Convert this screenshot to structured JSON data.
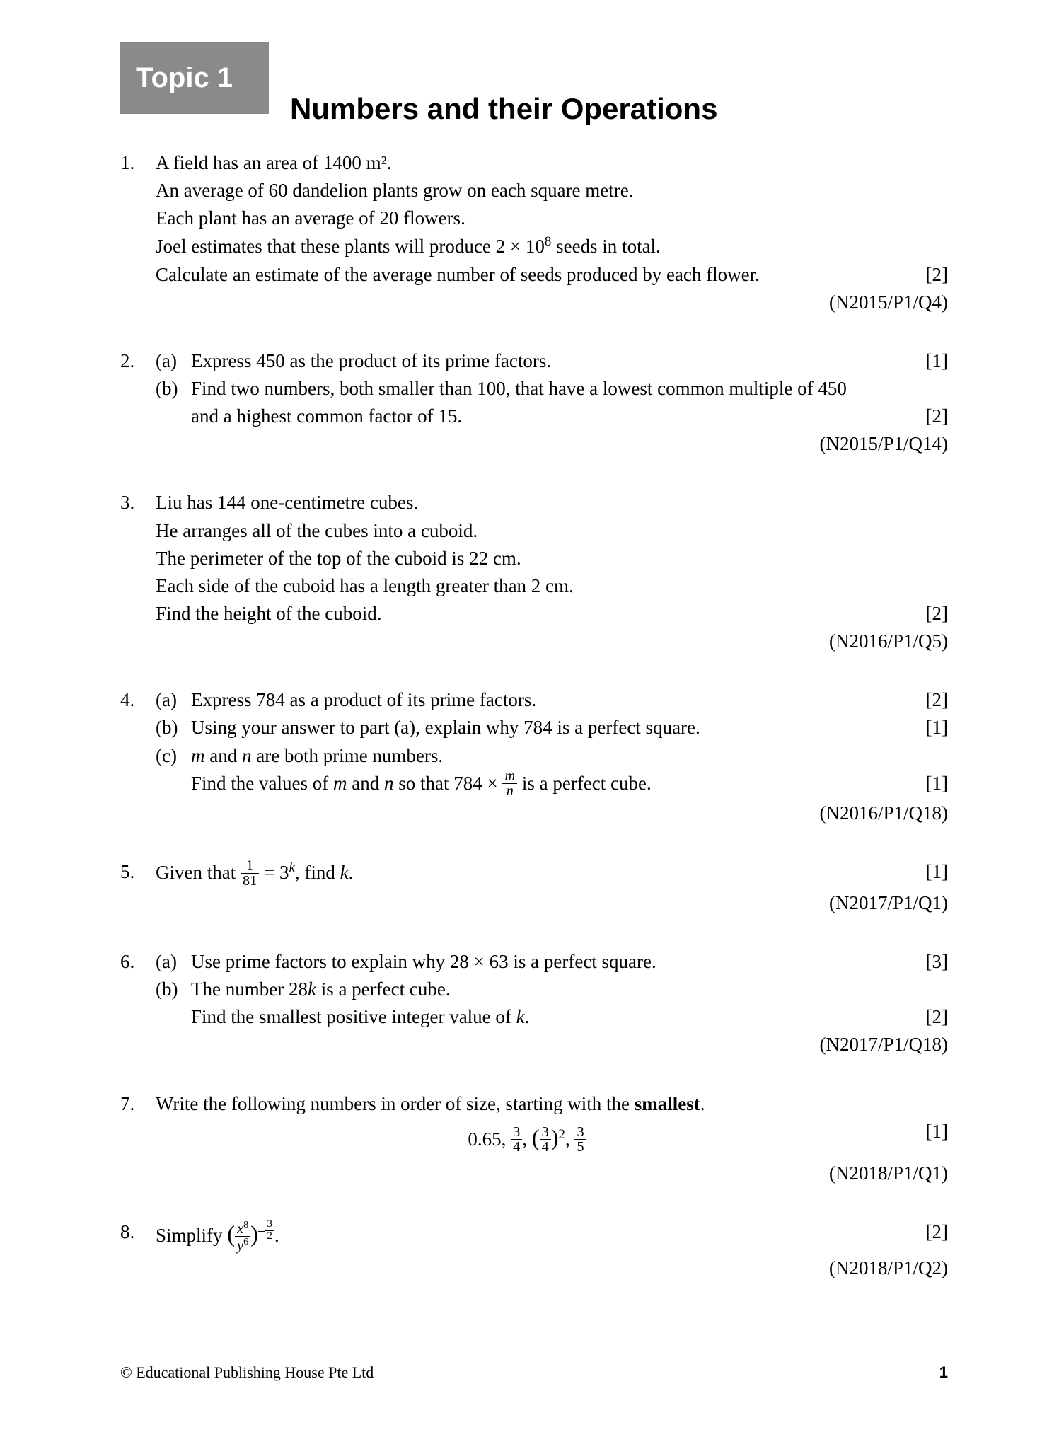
{
  "topic_badge": "Topic 1",
  "chapter_title": "Numbers and their Operations",
  "footer_copyright": "© Educational Publishing House Pte Ltd",
  "page_number": "1",
  "q1": {
    "num": "1.",
    "l1": "A field has an area of 1400 m².",
    "l2": "An average of 60 dandelion plants grow on each square metre.",
    "l3": "Each plant has an average of 20 flowers.",
    "l4a": "Joel estimates that these plants will produce 2 × 10",
    "l4b": " seeds in total.",
    "l5": "Calculate an estimate of the average number of seeds produced by each flower.",
    "marks": "[2]",
    "ref": "(N2015/P1/Q4)"
  },
  "q2": {
    "num": "2.",
    "a_label": "(a)",
    "a_text": "Express 450 as the product of its prime factors.",
    "a_marks": "[1]",
    "b_label": "(b)",
    "b_text1": "Find two numbers, both smaller than 100, that have a lowest common multiple of 450",
    "b_text2": "and a highest common factor of 15.",
    "b_marks": "[2]",
    "ref": "(N2015/P1/Q14)"
  },
  "q3": {
    "num": "3.",
    "l1": "Liu has 144 one-centimetre cubes.",
    "l2": "He arranges all of the cubes into a cuboid.",
    "l3": "The perimeter of the top of the cuboid is 22 cm.",
    "l4": "Each side of the cuboid has a length greater than 2 cm.",
    "l5": "Find the height of the cuboid.",
    "marks": "[2]",
    "ref": "(N2016/P1/Q5)"
  },
  "q4": {
    "num": "4.",
    "a_label": "(a)",
    "a_text": "Express 784 as a product of its prime factors.",
    "a_marks": "[2]",
    "b_label": "(b)",
    "b_text": "Using your answer to part (a), explain why 784 is a perfect square.",
    "b_marks": "[1]",
    "c_label": "(c)",
    "c_text_html": "<span class=\"italic\">m</span> and <span class=\"italic\">n</span> are both prime numbers.",
    "c2_text_html": "Find the values of <span class=\"italic\">m</span> and <span class=\"italic\">n</span> so that 784 × <span class=\"frac\"><span class=\"top\"><span class=\"italic\">m</span></span><span class=\"bot\"><span class=\"italic\">n</span></span></span> is a perfect cube.",
    "c_marks": "[1]",
    "ref": "(N2016/P1/Q18)"
  },
  "q5": {
    "num": "5.",
    "text_html": "Given that <span class=\"frac\"><span class=\"top\">1</span><span class=\"bot\">81</span></span> = 3<sup><span class=\"italic\">k</span></sup>, find <span class=\"italic\">k</span>.",
    "marks": "[1]",
    "ref": "(N2017/P1/Q1)"
  },
  "q6": {
    "num": "6.",
    "a_label": "(a)",
    "a_text": "Use prime factors to explain why 28 × 63 is a perfect square.",
    "a_marks": "[3]",
    "b_label": "(b)",
    "b_text_html": "The number 28<span class=\"italic\">k</span> is a perfect cube.",
    "b2_text_html": "Find the smallest positive integer value of <span class=\"italic\">k</span>.",
    "b_marks": "[2]",
    "ref": "(N2017/P1/Q18)"
  },
  "q7": {
    "num": "7.",
    "l1_html": "Write the following numbers in order of size, starting with the <b>smallest</b>.",
    "expr_html": "0.65, <span class=\"frac\"><span class=\"top\">3</span><span class=\"bot\">4</span></span>, <span style=\"font-size:1.2em\">(</span><span class=\"frac\"><span class=\"top\">3</span><span class=\"bot\">4</span></span><span style=\"font-size:1.2em\">)</span><sup>2</sup>, <span class=\"frac\"><span class=\"top\">3</span><span class=\"bot\">5</span></span>",
    "marks": "[1]",
    "ref": "(N2018/P1/Q1)"
  },
  "q8": {
    "num": "8.",
    "text_html": "Simplify <span style=\"font-size:1.2em\">(</span><span class=\"frac\"><span class=\"top\"><span class=\"italic\">x</span><sup>8</sup></span><span class=\"bot\"><span class=\"italic\">y</span><sup>6</sup></span></span><span style=\"font-size:1.2em\">)</span><sup>–<span class=\"frac\" style=\"font-size:0.8em\"><span class=\"top\">3</span><span class=\"bot\">2</span></span></sup>.",
    "marks": "[2]",
    "ref": "(N2018/P1/Q2)"
  }
}
